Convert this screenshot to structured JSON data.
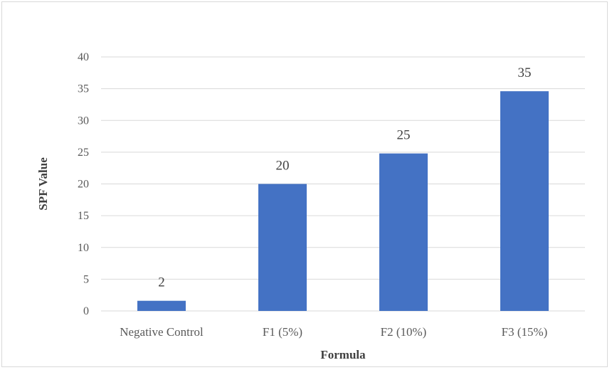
{
  "chart_data": {
    "type": "bar",
    "title": "",
    "xlabel": "Formula",
    "ylabel": "SPF Value",
    "categories": [
      "Negative Control",
      "F1 (5%)",
      "F2 (10%)",
      "F3 (15%)"
    ],
    "values": [
      1.6,
      20,
      24.8,
      34.6
    ],
    "data_labels": [
      "2",
      "20",
      "25",
      "35"
    ],
    "ylim": [
      0,
      40
    ],
    "yticks": [
      0,
      5,
      10,
      15,
      20,
      25,
      30,
      35,
      40
    ],
    "ytick_labels": [
      "0",
      "5",
      "10",
      "15",
      "20",
      "25",
      "30",
      "35",
      "40"
    ],
    "grid": true,
    "legend": "none",
    "bar_color": "#4472c4"
  }
}
